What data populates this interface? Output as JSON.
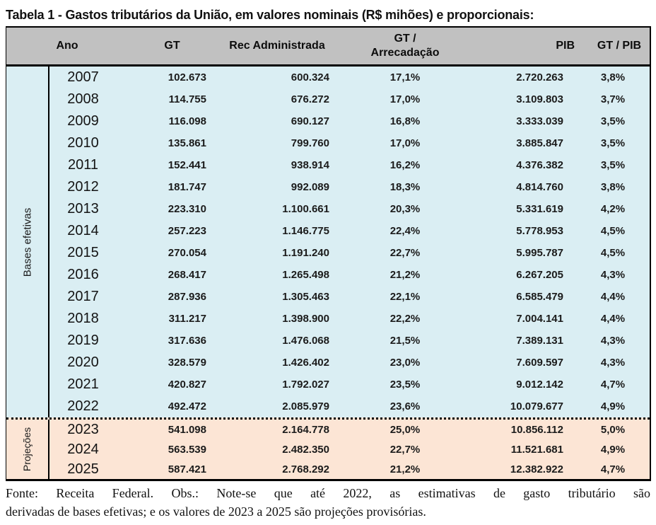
{
  "title": "Tabela 1 - Gastos tributários da União, em valores nominais (R$ mihões) e proporcionais:",
  "colors": {
    "header_bg": "#C1C1C1",
    "bases_efetivas_bg": "#DAEEF3",
    "projecoes_bg": "#FCE5D5",
    "border": "#000000"
  },
  "table": {
    "headers": {
      "ano": "Ano",
      "gt": "GT",
      "rec": "Rec Administrada",
      "gt_arr_line1": "GT /",
      "gt_arr_line2": "Arrecadação",
      "pib": "PIB",
      "gt_pib": "GT / PIB"
    },
    "groups": [
      {
        "label": "Bases efetivas",
        "rows": [
          {
            "ano": "2007",
            "gt": "102.673",
            "rec": "600.324",
            "gt_arr": "17,1%",
            "pib": "2.720.263",
            "gt_pib": "3,8%"
          },
          {
            "ano": "2008",
            "gt": "114.755",
            "rec": "676.272",
            "gt_arr": "17,0%",
            "pib": "3.109.803",
            "gt_pib": "3,7%"
          },
          {
            "ano": "2009",
            "gt": "116.098",
            "rec": "690.127",
            "gt_arr": "16,8%",
            "pib": "3.333.039",
            "gt_pib": "3,5%"
          },
          {
            "ano": "2010",
            "gt": "135.861",
            "rec": "799.760",
            "gt_arr": "17,0%",
            "pib": "3.885.847",
            "gt_pib": "3,5%"
          },
          {
            "ano": "2011",
            "gt": "152.441",
            "rec": "938.914",
            "gt_arr": "16,2%",
            "pib": "4.376.382",
            "gt_pib": "3,5%"
          },
          {
            "ano": "2012",
            "gt": "181.747",
            "rec": "992.089",
            "gt_arr": "18,3%",
            "pib": "4.814.760",
            "gt_pib": "3,8%"
          },
          {
            "ano": "2013",
            "gt": "223.310",
            "rec": "1.100.661",
            "gt_arr": "20,3%",
            "pib": "5.331.619",
            "gt_pib": "4,2%"
          },
          {
            "ano": "2014",
            "gt": "257.223",
            "rec": "1.146.775",
            "gt_arr": "22,4%",
            "pib": "5.778.953",
            "gt_pib": "4,5%"
          },
          {
            "ano": "2015",
            "gt": "270.054",
            "rec": "1.191.240",
            "gt_arr": "22,7%",
            "pib": "5.995.787",
            "gt_pib": "4,5%"
          },
          {
            "ano": "2016",
            "gt": "268.417",
            "rec": "1.265.498",
            "gt_arr": "21,2%",
            "pib": "6.267.205",
            "gt_pib": "4,3%"
          },
          {
            "ano": "2017",
            "gt": "287.936",
            "rec": "1.305.463",
            "gt_arr": "22,1%",
            "pib": "6.585.479",
            "gt_pib": "4,4%"
          },
          {
            "ano": "2018",
            "gt": "311.217",
            "rec": "1.398.900",
            "gt_arr": "22,2%",
            "pib": "7.004.141",
            "gt_pib": "4,4%"
          },
          {
            "ano": "2019",
            "gt": "317.636",
            "rec": "1.476.068",
            "gt_arr": "21,5%",
            "pib": "7.389.131",
            "gt_pib": "4,3%"
          },
          {
            "ano": "2020",
            "gt": "328.579",
            "rec": "1.426.402",
            "gt_arr": "23,0%",
            "pib": "7.609.597",
            "gt_pib": "4,3%"
          },
          {
            "ano": "2021",
            "gt": "420.827",
            "rec": "1.792.027",
            "gt_arr": "23,5%",
            "pib": "9.012.142",
            "gt_pib": "4,7%"
          },
          {
            "ano": "2022",
            "gt": "492.472",
            "rec": "2.085.979",
            "gt_arr": "23,6%",
            "pib": "10.079.677",
            "gt_pib": "4,9%"
          }
        ]
      },
      {
        "label": "Projeções",
        "rows": [
          {
            "ano": "2023",
            "gt": "541.098",
            "rec": "2.164.778",
            "gt_arr": "25,0%",
            "pib": "10.856.112",
            "gt_pib": "5,0%"
          },
          {
            "ano": "2024",
            "gt": "563.539",
            "rec": "2.482.350",
            "gt_arr": "22,7%",
            "pib": "11.521.681",
            "gt_pib": "4,9%"
          },
          {
            "ano": "2025",
            "gt": "587.421",
            "rec": "2.768.292",
            "gt_arr": "21,2%",
            "pib": "12.382.922",
            "gt_pib": "4,7%"
          }
        ]
      }
    ]
  },
  "footer": {
    "line1": "Fonte: Receita Federal. Obs.: Note-se que até 2022, as estimativas de gasto tributário são",
    "line2": "derivadas de bases efetivas; e os valores de 2023 a 2025 são projeções provisórias."
  }
}
